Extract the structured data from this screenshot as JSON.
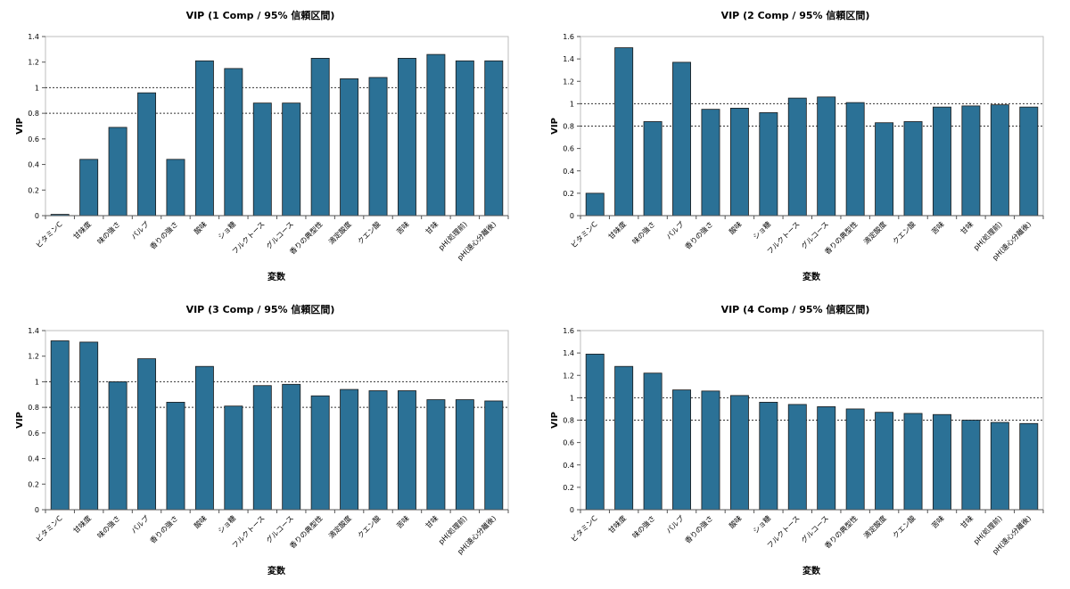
{
  "chart_data": [
    {
      "type": "bar",
      "title": "VIP (1 Comp / 95% 信頼区間)",
      "xlabel": "変数",
      "ylabel": "VIP",
      "ylim": [
        0,
        1.4
      ],
      "yticks": [
        "0",
        "0.2",
        "0.4",
        "0.6",
        "0.8",
        "1",
        "1.2",
        "1.4"
      ],
      "reference_lines": [
        0.8,
        1.0
      ],
      "categories": [
        "ビタミンC",
        "甘味度",
        "味の強さ",
        "パルプ",
        "香りの強さ",
        "酸味",
        "ショ糖",
        "フルクトース",
        "グルコース",
        "香りの典型性",
        "滴定酸度",
        "クエン酸",
        "苦味",
        "甘味",
        "pH(処理前)",
        "pH(遠心分離後)"
      ],
      "values": [
        0.01,
        0.44,
        0.69,
        0.96,
        0.44,
        1.21,
        1.15,
        0.88,
        0.88,
        1.23,
        1.07,
        1.08,
        1.23,
        1.26,
        1.21,
        1.21
      ],
      "bar_color": "#2b7196"
    },
    {
      "type": "bar",
      "title": "VIP (2 Comp / 95% 信頼区間)",
      "xlabel": "変数",
      "ylabel": "VIP",
      "ylim": [
        0,
        1.6
      ],
      "yticks": [
        "0",
        "0.2",
        "0.4",
        "0.6",
        "0.8",
        "1",
        "1.2",
        "1.4",
        "1.6"
      ],
      "reference_lines": [
        0.8,
        1.0
      ],
      "categories": [
        "ビタミンC",
        "甘味度",
        "味の強さ",
        "パルプ",
        "香りの強さ",
        "酸味",
        "ショ糖",
        "フルクトース",
        "グルコース",
        "香りの典型性",
        "滴定酸度",
        "クエン酸",
        "苦味",
        "甘味",
        "pH(処理前)",
        "pH(遠心分離後)"
      ],
      "values": [
        0.2,
        1.5,
        0.84,
        1.37,
        0.95,
        0.96,
        0.92,
        1.05,
        1.06,
        1.01,
        0.83,
        0.84,
        0.97,
        0.98,
        0.99,
        0.97
      ],
      "bar_color": "#2b7196"
    },
    {
      "type": "bar",
      "title": "VIP (3 Comp / 95% 信頼区間)",
      "xlabel": "変数",
      "ylabel": "VIP",
      "ylim": [
        0,
        1.4
      ],
      "yticks": [
        "0",
        "0.2",
        "0.4",
        "0.6",
        "0.8",
        "1",
        "1.2",
        "1.4"
      ],
      "reference_lines": [
        0.8,
        1.0
      ],
      "categories": [
        "ビタミンC",
        "甘味度",
        "味の強さ",
        "パルプ",
        "香りの強さ",
        "酸味",
        "ショ糖",
        "フルクトース",
        "グルコース",
        "香りの典型性",
        "滴定酸度",
        "クエン酸",
        "苦味",
        "甘味",
        "pH(処理前)",
        "pH(遠心分離後)"
      ],
      "values": [
        1.32,
        1.31,
        1.0,
        1.18,
        0.84,
        1.12,
        0.81,
        0.97,
        0.98,
        0.89,
        0.94,
        0.93,
        0.93,
        0.86,
        0.86,
        0.85
      ],
      "bar_color": "#2b7196"
    },
    {
      "type": "bar",
      "title": "VIP (4 Comp / 95% 信頼区間)",
      "xlabel": "変数",
      "ylabel": "VIP",
      "ylim": [
        0,
        1.6
      ],
      "yticks": [
        "0",
        "0.2",
        "0.4",
        "0.6",
        "0.8",
        "1",
        "1.2",
        "1.4",
        "1.6"
      ],
      "reference_lines": [
        0.8,
        1.0
      ],
      "categories": [
        "ビタミンC",
        "甘味度",
        "味の強さ",
        "パルプ",
        "香りの強さ",
        "酸味",
        "ショ糖",
        "フルクトース",
        "グルコース",
        "香りの典型性",
        "滴定酸度",
        "クエン酸",
        "苦味",
        "甘味",
        "pH(処理前)",
        "pH(遠心分離後)"
      ],
      "values": [
        1.39,
        1.28,
        1.22,
        1.07,
        1.06,
        1.02,
        0.96,
        0.94,
        0.92,
        0.9,
        0.87,
        0.86,
        0.85,
        0.8,
        0.78,
        0.77
      ],
      "bar_color": "#2b7196"
    }
  ]
}
